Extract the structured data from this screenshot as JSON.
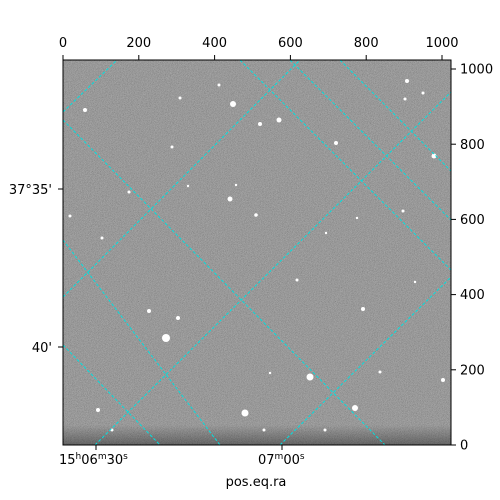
{
  "image_axes": {
    "x_ticks": [
      "0",
      "200",
      "400",
      "600",
      "800",
      "1000"
    ],
    "y_ticks": [
      "0",
      "200",
      "400",
      "600",
      "800",
      "1000"
    ],
    "x_range": [
      0,
      1024
    ],
    "y_range": [
      0,
      1024
    ]
  },
  "world_axes": {
    "dec_labels": [
      "37°35'",
      "40'"
    ],
    "ra_labels": [
      {
        "main": "15",
        "sup1": "h",
        "mid1": "06",
        "sup2": "m",
        "mid2": "30",
        "sup3": "s"
      },
      {
        "main": "07",
        "sup1": "m",
        "mid1": "00",
        "sup2": "s",
        "mid2": "",
        "sup3": ""
      }
    ],
    "xlabel": "pos.eq.ra"
  },
  "colors": {
    "grid": "#00e0e0",
    "background_gray": "#6e6e6e"
  }
}
